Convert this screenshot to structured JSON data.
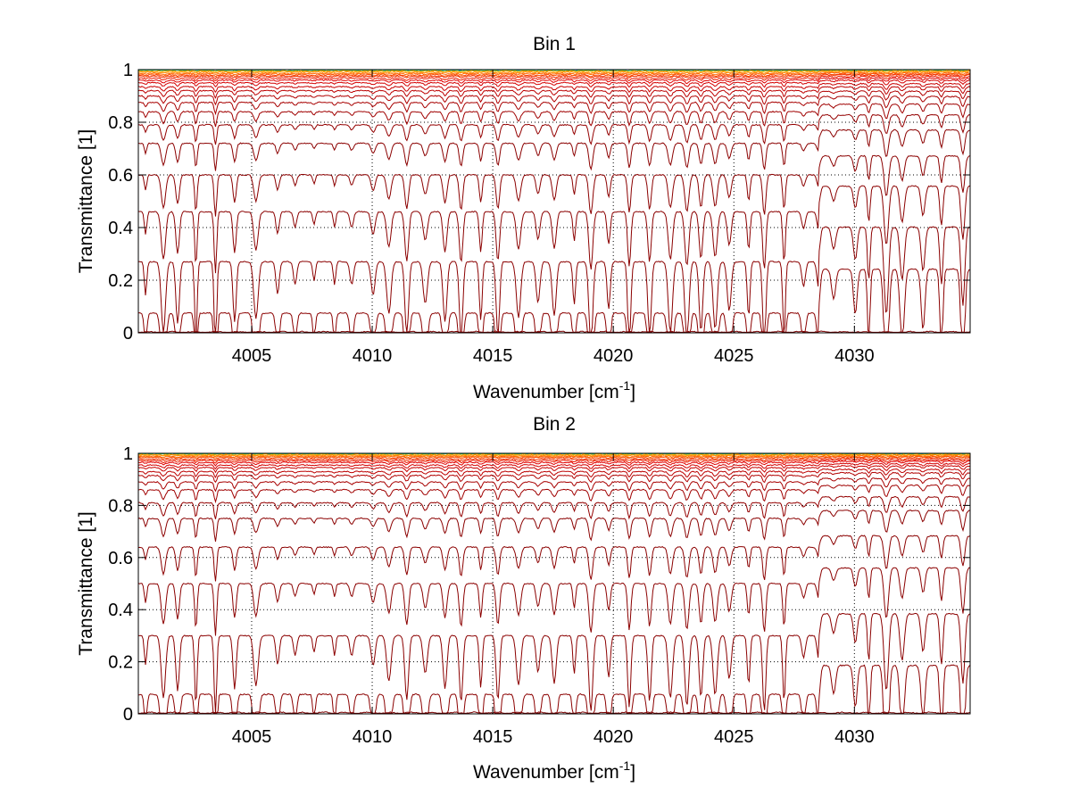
{
  "chart_data": [
    {
      "type": "line",
      "title": "Bin 1",
      "xlabel_main": "Wavenumber [cm",
      "xlabel_sup": "-1",
      "xlabel_end": "]",
      "ylabel": "Transmittance [1]",
      "xlim": [
        4000.3,
        4034.8
      ],
      "ylim": [
        0,
        1
      ],
      "xticks": [
        4005,
        4010,
        4015,
        4020,
        4025,
        4030
      ],
      "xtick_labels": [
        "4005",
        "4010",
        "4015",
        "4020",
        "4025",
        "4030"
      ],
      "yticks": [
        0,
        0.2,
        0.4,
        0.6,
        0.8,
        1
      ],
      "ytick_labels": [
        "0",
        "0.2",
        "0.4",
        "0.6",
        "0.8",
        "1"
      ],
      "grid": true,
      "series_description": "approximately 40 transmittance spectra at increasing optical depth",
      "series_baselines": [
        0.003,
        0.075,
        0.27,
        0.46,
        0.6,
        0.72,
        0.79,
        0.84,
        0.875,
        0.9,
        0.92,
        0.935,
        0.95,
        0.96,
        0.968,
        0.975,
        0.98,
        0.985,
        0.99,
        0.994,
        0.997,
        0.999
      ],
      "series_colors": [
        "#7a0000",
        "#8b0000",
        "#8b0000",
        "#8b0000",
        "#8b0000",
        "#8b0000",
        "#940000",
        "#a00000",
        "#a80000",
        "#b20000",
        "#bd0000",
        "#c80000",
        "#d40000",
        "#e00000",
        "#ea1a00",
        "#f23000",
        "#f84a00",
        "#ff6600",
        "#ff8800",
        "#ffb000",
        "#33cc66",
        "#0066ff"
      ]
    },
    {
      "type": "line",
      "title": "Bin 2",
      "xlabel_main": "Wavenumber [cm",
      "xlabel_sup": "-1",
      "xlabel_end": "]",
      "ylabel": "Transmittance [1]",
      "xlim": [
        4000.3,
        4034.8
      ],
      "ylim": [
        0,
        1
      ],
      "xticks": [
        4005,
        4010,
        4015,
        4020,
        4025,
        4030
      ],
      "xtick_labels": [
        "4005",
        "4010",
        "4015",
        "4020",
        "4025",
        "4030"
      ],
      "yticks": [
        0,
        0.2,
        0.4,
        0.6,
        0.8,
        1
      ],
      "ytick_labels": [
        "0",
        "0.2",
        "0.4",
        "0.6",
        "0.8",
        "1"
      ],
      "grid": true,
      "series_description": "approximately 40 transmittance spectra at increasing optical depth",
      "series_baselines": [
        0.004,
        0.075,
        0.3,
        0.5,
        0.64,
        0.75,
        0.81,
        0.86,
        0.89,
        0.915,
        0.93,
        0.945,
        0.955,
        0.965,
        0.972,
        0.978,
        0.984,
        0.988,
        0.992,
        0.995,
        0.998,
        0.999
      ],
      "series_colors": [
        "#7a0000",
        "#8b0000",
        "#8b0000",
        "#8b0000",
        "#8b0000",
        "#8b0000",
        "#940000",
        "#a00000",
        "#a80000",
        "#b20000",
        "#bd0000",
        "#c80000",
        "#d40000",
        "#e00000",
        "#ea1a00",
        "#f23000",
        "#f84a00",
        "#ff6600",
        "#ff8800",
        "#ffb000",
        "#33cc66",
        "#0066ff"
      ]
    }
  ]
}
